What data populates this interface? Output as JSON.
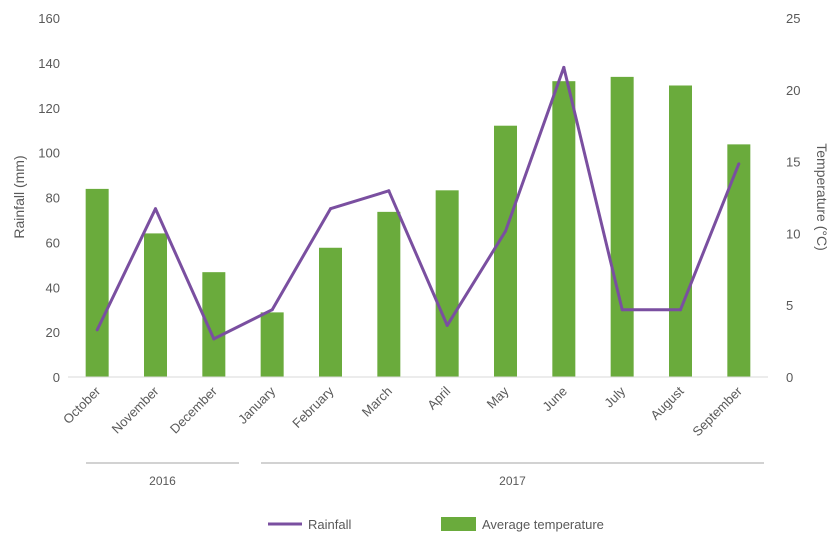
{
  "chart_data": {
    "type": "bar",
    "categories": [
      "October",
      "November",
      "December",
      "January",
      "February",
      "March",
      "April",
      "May",
      "June",
      "July",
      "August",
      "September"
    ],
    "category_groups": [
      {
        "label": "2016",
        "from": 0,
        "to": 2
      },
      {
        "label": "2017",
        "from": 3,
        "to": 11
      }
    ],
    "series": [
      {
        "name": "Average temperature",
        "type": "bar",
        "axis": "right",
        "color": "#6aab3c",
        "values": [
          13.1,
          10.0,
          7.3,
          4.5,
          9.0,
          11.5,
          13.0,
          17.5,
          20.6,
          20.9,
          20.3,
          16.2
        ]
      },
      {
        "name": "Rainfall",
        "type": "line",
        "axis": "left",
        "color": "#7a4fa0",
        "values": [
          21,
          75,
          17,
          30,
          75,
          83,
          23,
          65,
          138,
          30,
          30,
          95
        ]
      }
    ],
    "ylabel": "Rainfall (mm)",
    "ylim": [
      0,
      160
    ],
    "yticks": [
      "0",
      "20",
      "40",
      "60",
      "80",
      "100",
      "120",
      "140",
      "160"
    ],
    "y2label": "Temperature (°C)",
    "y2lim": [
      0,
      25
    ],
    "y2ticks": [
      "0",
      "5",
      "10",
      "15",
      "20",
      "25"
    ],
    "legend": {
      "position": "bottom",
      "items": [
        "Rainfall",
        "Average temperature"
      ]
    },
    "grid": false
  }
}
